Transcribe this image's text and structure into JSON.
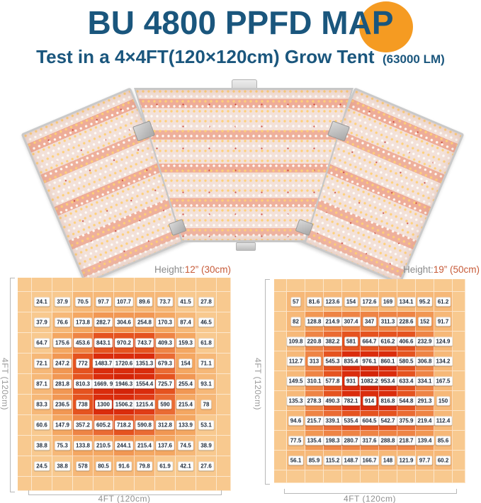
{
  "header": {
    "title": "BU 4800 PPFD MAP",
    "subtitle": "Test in a 4×4FT(120×120cm) Grow Tent",
    "lumen_note": "(63000 LM)"
  },
  "colors": {
    "title_blue": "#1A567D",
    "accent_orange": "#F59B22",
    "height_value_orange": "#C75B39",
    "axis_gray": "#9B9B9B",
    "heat_ramp": [
      "#f8c98f",
      "#f6b878",
      "#f4a762",
      "#f19753",
      "#ee8445",
      "#ea6b33",
      "#e5531f",
      "#e03c16",
      "#da2c0c",
      "#d42408"
    ]
  },
  "chart_data": [
    {
      "type": "heatmap",
      "position": "left",
      "title_prefix": "Height:",
      "title_value": "12” (30cm)",
      "xlabel": "4FT (120cm)",
      "ylabel": "4FT (120cm)",
      "rows": 9,
      "cols": 9,
      "values": [
        [
          24.1,
          37.9,
          70.5,
          97.7,
          107.7,
          89.6,
          73.7,
          41.5,
          27.8
        ],
        [
          37.9,
          76.6,
          173.8,
          282.7,
          304.6,
          254.8,
          170.3,
          87.4,
          46.5
        ],
        [
          64.7,
          175.6,
          453.6,
          843.1,
          970.2,
          743.7,
          409.3,
          159.3,
          61.8
        ],
        [
          72.1,
          247.2,
          772,
          1483.7,
          1720.6,
          1351.3,
          679.3,
          154,
          71.1
        ],
        [
          87.1,
          281.8,
          810.3,
          "1669. 9",
          1946.3,
          1554.4,
          725.7,
          255.4,
          93.1
        ],
        [
          83.3,
          236.5,
          738,
          1300,
          1506.2,
          1215.4,
          590,
          215.4,
          78
        ],
        [
          60.6,
          147.9,
          357.2,
          605.2,
          718.2,
          590.8,
          312.8,
          133.9,
          53.1
        ],
        [
          38.8,
          75.3,
          133.8,
          210.5,
          244.1,
          215.4,
          137.6,
          74.5,
          38.9
        ],
        [
          24.5,
          38.8,
          578,
          80.5,
          91.6,
          79.8,
          61.9,
          42.1,
          27.6
        ]
      ]
    },
    {
      "type": "heatmap",
      "position": "right",
      "title_prefix": "Height:",
      "title_value": "19” (50cm)",
      "xlabel": "4FT (120cm)",
      "ylabel": "4FT (120cm)",
      "rows": 9,
      "cols": 9,
      "values": [
        [
          57,
          81.6,
          123.6,
          154,
          172.6,
          169,
          134.1,
          95.2,
          61.2
        ],
        [
          82,
          128.8,
          214.9,
          307.4,
          347,
          311.3,
          228.6,
          152,
          91.7
        ],
        [
          109.8,
          220.8,
          382.2,
          581,
          664.7,
          616.2,
          406.6,
          232.9,
          124.9
        ],
        [
          112.7,
          313,
          545.3,
          835.4,
          976.1,
          860.1,
          580.5,
          306.8,
          134.2
        ],
        [
          149.5,
          310.1,
          577.8,
          931,
          1082.2,
          953.4,
          633.4,
          334.1,
          167.5
        ],
        [
          135.3,
          278.3,
          490.3,
          782.1,
          914,
          816.8,
          544.8,
          291.3,
          150
        ],
        [
          94.6,
          215.7,
          339.1,
          535.4,
          604.5,
          542.7,
          375.9,
          219.4,
          112.4
        ],
        [
          77.5,
          135.4,
          198.3,
          280.7,
          317.6,
          288.8,
          218.7,
          139.4,
          85.6
        ],
        [
          56.1,
          85.9,
          115.2,
          148.7,
          166.7,
          148,
          121.9,
          97.7,
          60.2
        ]
      ]
    }
  ]
}
